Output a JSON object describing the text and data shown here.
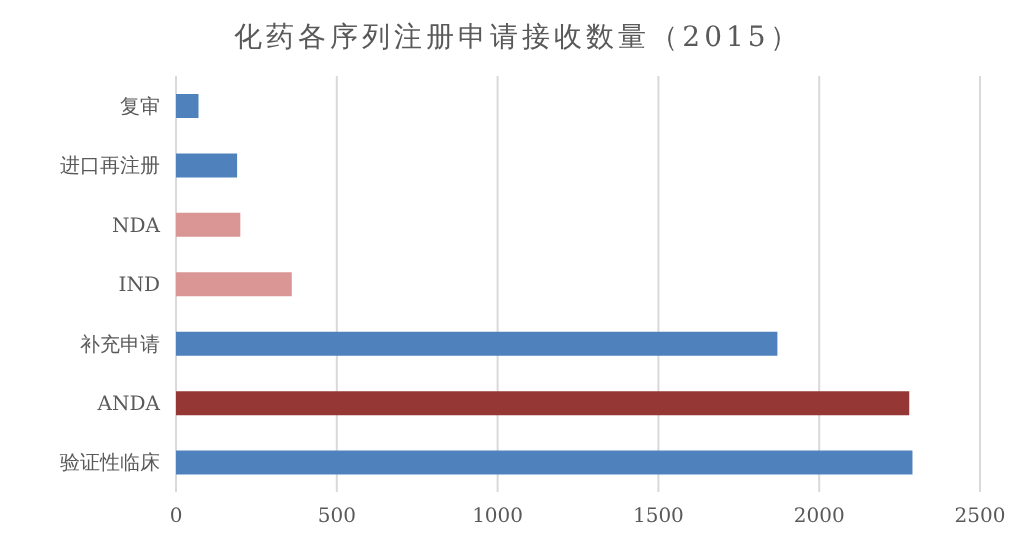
{
  "chart_data": {
    "type": "bar",
    "orientation": "horizontal",
    "title": "化药各序列注册申请接收数量（2015）",
    "categories": [
      "复审",
      "进口再注册",
      "NDA",
      "IND",
      "补充申请",
      "ANDA",
      "验证性临床"
    ],
    "values": [
      70,
      190,
      200,
      360,
      1870,
      2280,
      2290
    ],
    "colors": [
      "#4f81bd",
      "#4f81bd",
      "#da9694",
      "#da9694",
      "#4f81bd",
      "#953735",
      "#4f81bd"
    ],
    "xlim": [
      0,
      2500
    ],
    "xticks": [
      0,
      500,
      1000,
      1500,
      2000,
      2500
    ],
    "grid": "x"
  }
}
